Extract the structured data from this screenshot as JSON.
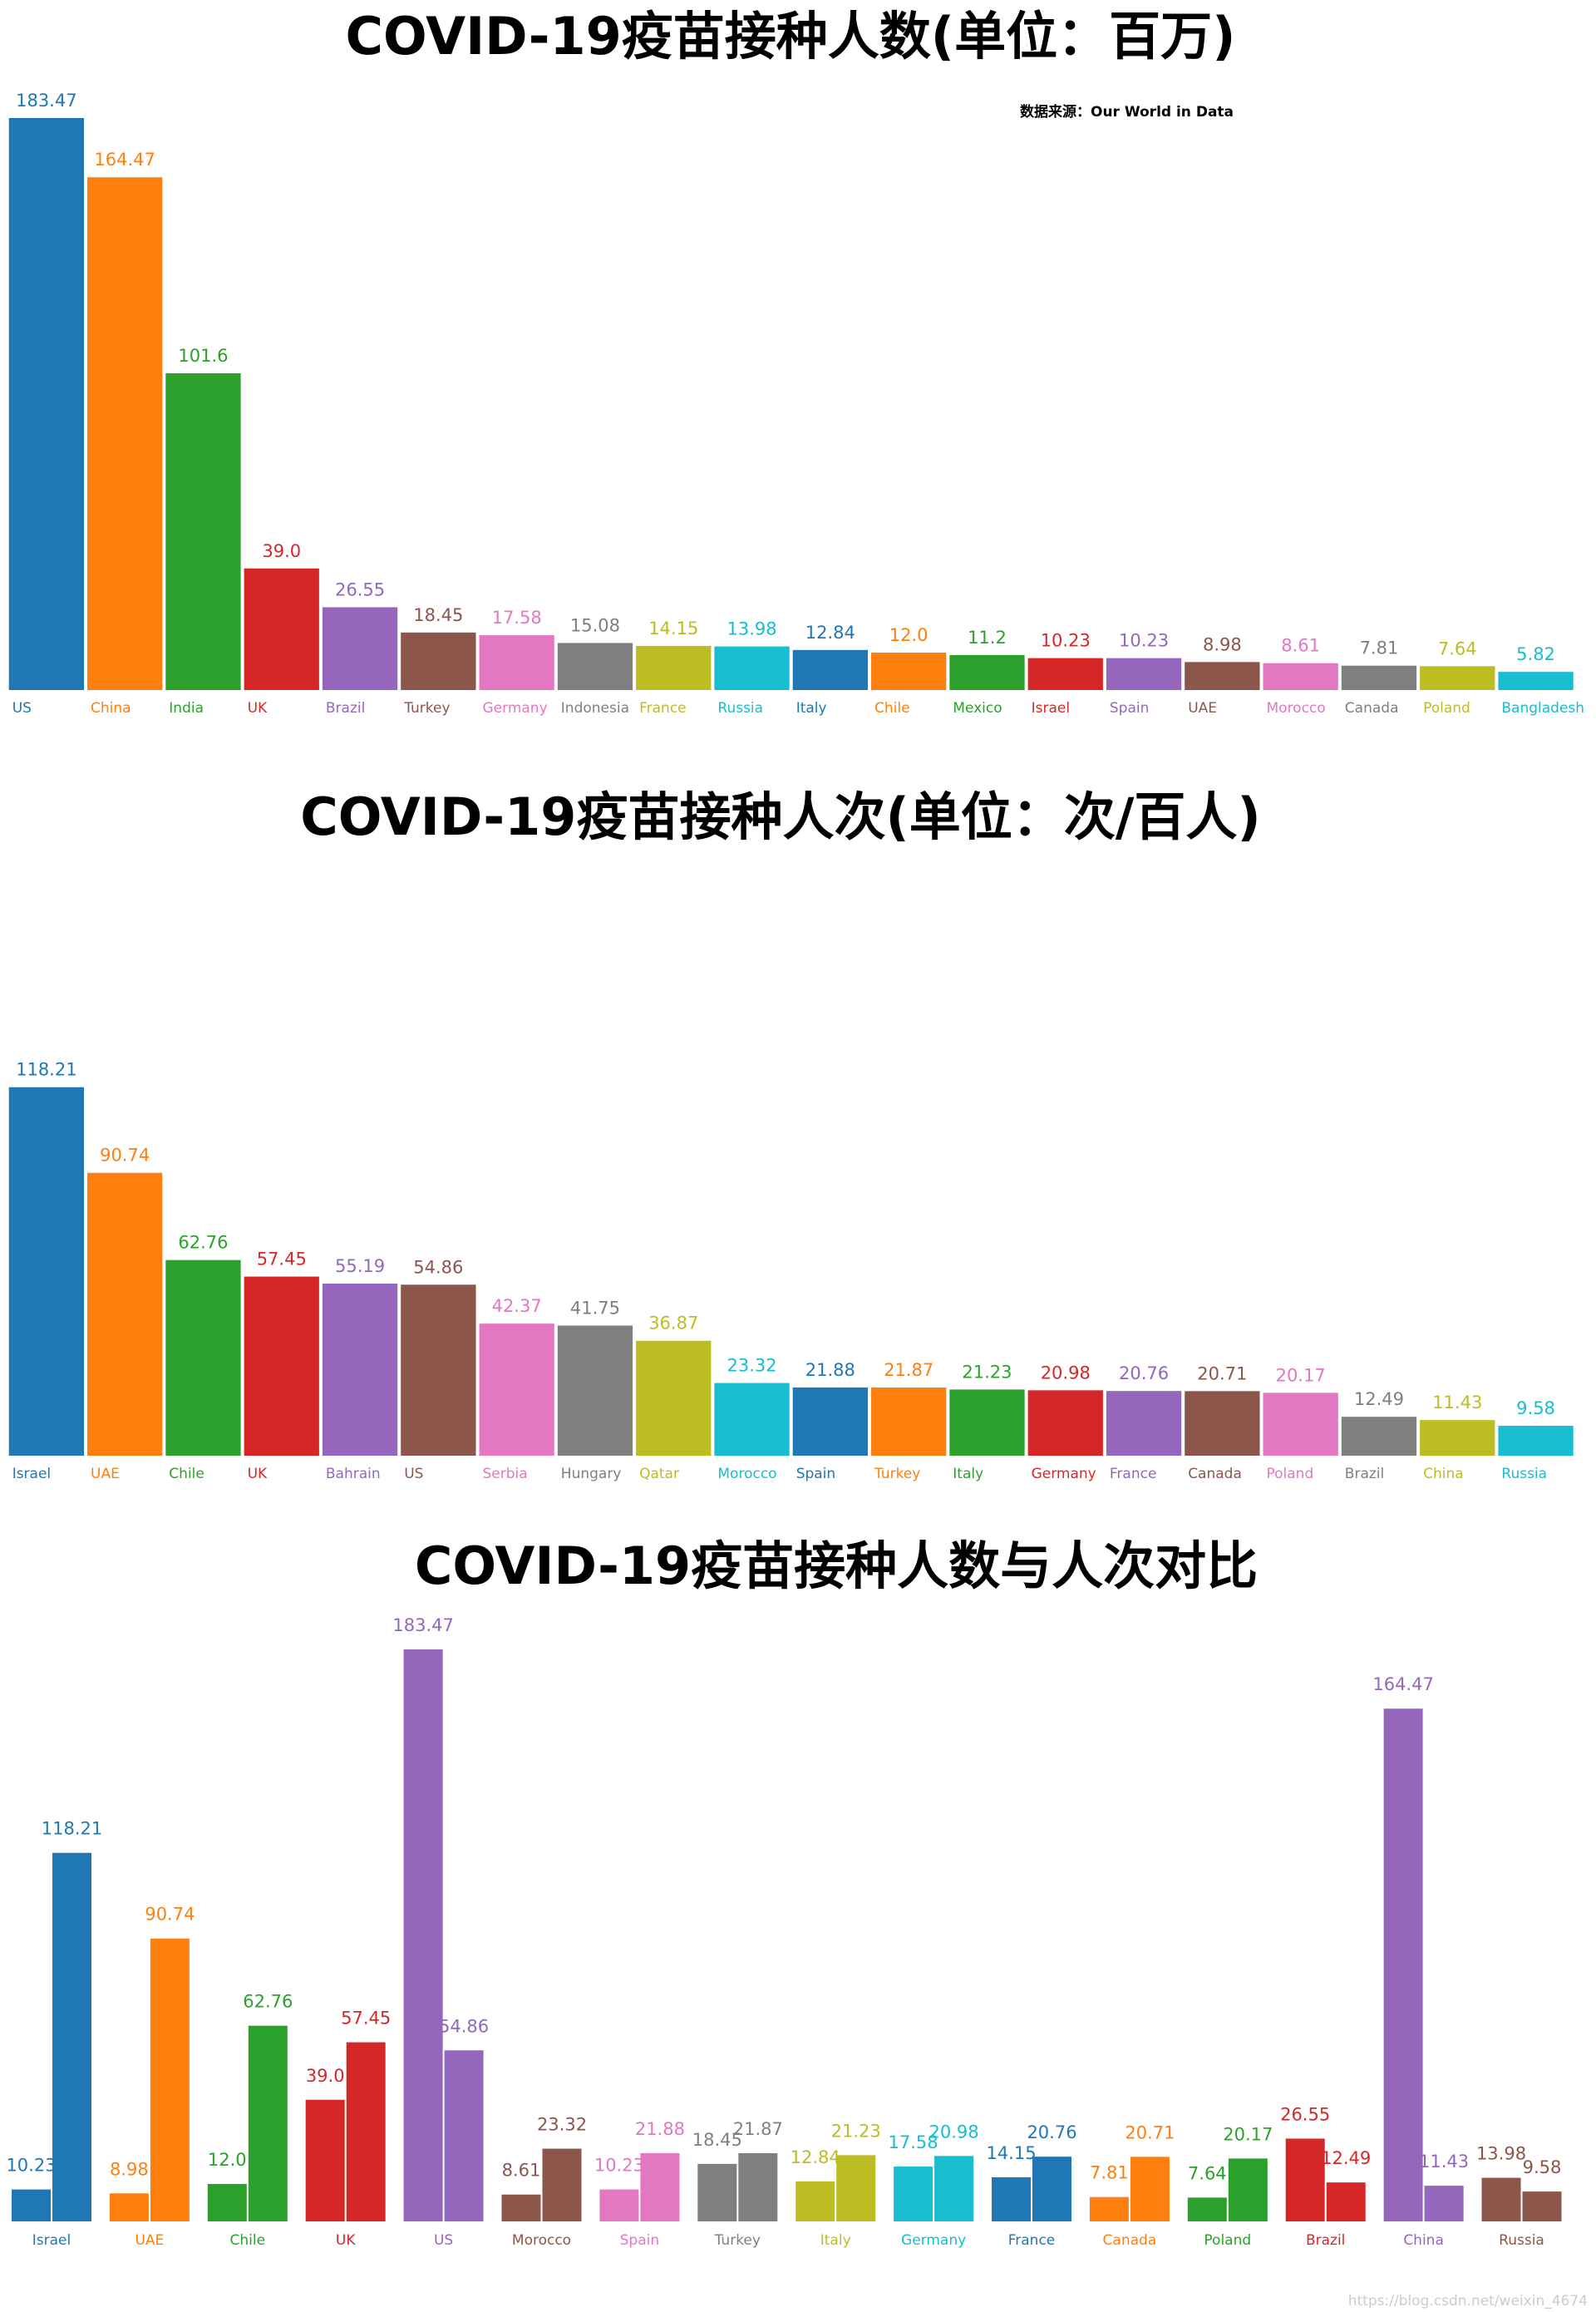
{
  "chart_data": [
    {
      "type": "bar",
      "title": "COVID-19疫苗接种人数(单位：百万)",
      "source": "数据来源：Our World in Data",
      "colors": [
        "#1f77b4",
        "#ff7f0e",
        "#2ca02c",
        "#d62728",
        "#9467bd",
        "#8c564b",
        "#e377c2",
        "#7f7f7f",
        "#bcbd22",
        "#17becf"
      ],
      "categories": [
        "US",
        "China",
        "India",
        "UK",
        "Brazil",
        "Turkey",
        "Germany",
        "Indonesia",
        "France",
        "Russia",
        "Italy",
        "Chile",
        "Mexico",
        "Israel",
        "Spain",
        "UAE",
        "Morocco",
        "Canada",
        "Poland",
        "Bangladesh"
      ],
      "values": [
        183.47,
        164.47,
        101.6,
        39.0,
        26.55,
        18.45,
        17.58,
        15.08,
        14.15,
        13.98,
        12.84,
        12.0,
        11.2,
        10.23,
        10.23,
        8.98,
        8.61,
        7.81,
        7.64,
        5.82
      ],
      "value_labels": [
        "183.47",
        "164.47",
        "101.6",
        "39.0",
        "26.55",
        "18.45",
        "17.58",
        "15.08",
        "14.15",
        "13.98",
        "12.84",
        "12.0",
        "11.2",
        "10.23",
        "10.23",
        "8.98",
        "8.61",
        "7.81",
        "7.64",
        "5.82"
      ]
    },
    {
      "type": "bar",
      "title": "COVID-19疫苗接种人次(单位：次/百人)",
      "colors": [
        "#1f77b4",
        "#ff7f0e",
        "#2ca02c",
        "#d62728",
        "#9467bd",
        "#8c564b",
        "#e377c2",
        "#7f7f7f",
        "#bcbd22",
        "#17becf"
      ],
      "categories": [
        "Israel",
        "UAE",
        "Chile",
        "UK",
        "Bahrain",
        "US",
        "Serbia",
        "Hungary",
        "Qatar",
        "Morocco",
        "Spain",
        "Turkey",
        "Italy",
        "Germany",
        "France",
        "Canada",
        "Poland",
        "Brazil",
        "China",
        "Russia"
      ],
      "values": [
        118.21,
        90.74,
        62.76,
        57.45,
        55.19,
        54.86,
        42.37,
        41.75,
        36.87,
        23.32,
        21.88,
        21.87,
        21.23,
        20.98,
        20.76,
        20.71,
        20.17,
        12.49,
        11.43,
        9.58
      ],
      "value_labels": [
        "118.21",
        "90.74",
        "62.76",
        "57.45",
        "55.19",
        "54.86",
        "42.37",
        "41.75",
        "36.87",
        "23.32",
        "21.88",
        "21.87",
        "21.23",
        "20.98",
        "20.76",
        "20.71",
        "20.17",
        "12.49",
        "11.43",
        "9.58"
      ]
    },
    {
      "type": "grouped_bar",
      "title": "COVID-19疫苗接种人数与人次对比",
      "colors": [
        "#1f77b4",
        "#ff7f0e",
        "#2ca02c",
        "#d62728",
        "#9467bd",
        "#8c564b",
        "#e377c2",
        "#7f7f7f",
        "#bcbd22",
        "#17becf"
      ],
      "categories": [
        "Israel",
        "UAE",
        "Chile",
        "UK",
        "US",
        "Morocco",
        "Spain",
        "Turkey",
        "Italy",
        "Germany",
        "France",
        "Canada",
        "Poland",
        "Brazil",
        "China",
        "Russia"
      ],
      "series": [
        {
          "values": [
            10.23,
            8.98,
            12.0,
            39.0,
            183.47,
            8.61,
            10.23,
            18.45,
            12.84,
            17.58,
            14.15,
            7.81,
            7.64,
            26.55,
            164.47,
            13.98
          ],
          "value_labels": [
            "10.23",
            "8.98",
            "12.0",
            "39.0",
            "183.47",
            "8.61",
            "10.23",
            "18.45",
            "12.84",
            "17.58",
            "14.15",
            "7.81",
            "7.64",
            "26.55",
            "164.47",
            "13.98"
          ]
        },
        {
          "values": [
            118.21,
            90.74,
            62.76,
            57.45,
            54.86,
            23.32,
            21.88,
            21.87,
            21.23,
            20.98,
            20.76,
            20.71,
            20.17,
            12.49,
            11.43,
            9.58
          ],
          "value_labels": [
            "118.21",
            "90.74",
            "62.76",
            "57.45",
            "54.86",
            "23.32",
            "21.88",
            "21.87",
            "21.23",
            "20.98",
            "20.76",
            "20.71",
            "20.17",
            "12.49",
            "11.43",
            "9.58"
          ]
        }
      ]
    }
  ],
  "watermark": "https://blog.csdn.net/weixin_4674"
}
